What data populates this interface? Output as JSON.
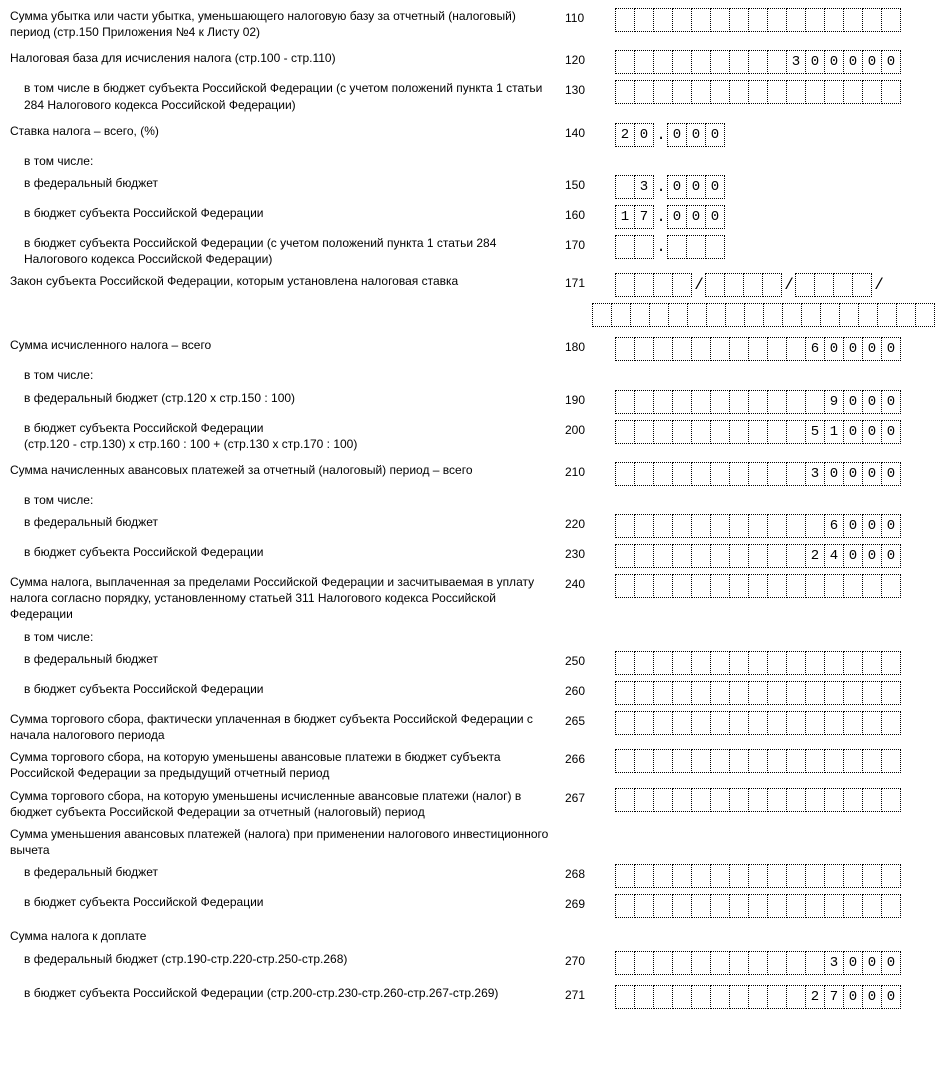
{
  "rows": [
    {
      "code": "110",
      "label": "Сумма убытка или части убытка, уменьшающего налоговую базу за отчетный (налоговый) период (стр.150 Приложения №4 к Листу 02)",
      "indent": 0,
      "cells": 15,
      "value": "",
      "align": "right"
    },
    {
      "code": "120",
      "label": "Налоговая база для исчисления налога (стр.100 - стр.110)",
      "indent": 0,
      "cells": 15,
      "value": "300000",
      "align": "right",
      "gap": true
    },
    {
      "code": "130",
      "label": "в том числе в бюджет субъекта Российской Федерации (с учетом положений пункта 1 статьи 284 Налогового кодекса Российской Федерации)",
      "indent": 1,
      "cells": 15,
      "value": "",
      "align": "right"
    },
    {
      "code": "140",
      "label": "Ставка налога – всего, (%)",
      "indent": 0,
      "type": "rate",
      "int": "20",
      "frac": "000",
      "gap": true
    },
    {
      "code": "",
      "label": "в том числе:",
      "indent": 1,
      "type": "text"
    },
    {
      "code": "150",
      "label": "в федеральный бюджет",
      "indent": 1,
      "type": "rate",
      "int": "3",
      "frac": "000"
    },
    {
      "code": "160",
      "label": "в бюджет субъекта Российской Федерации",
      "indent": 1,
      "type": "rate",
      "int": "17",
      "frac": "000"
    },
    {
      "code": "170",
      "label": "в бюджет субъекта Российской Федерации (с учетом положений пункта 1 статьи 284 Налогового кодекса Российской Федерации)",
      "indent": 1,
      "type": "rate",
      "int": "",
      "frac": ""
    },
    {
      "code": "171",
      "label": "Закон субъекта Российской Федерации, которым установлена налоговая ставка",
      "indent": 0,
      "type": "law"
    },
    {
      "code": "",
      "label": "",
      "indent": 0,
      "cells": 18,
      "value": "",
      "type": "law2"
    },
    {
      "code": "180",
      "label": "Сумма исчисленного налога – всего",
      "indent": 0,
      "cells": 15,
      "value": "60000",
      "align": "right",
      "gap": true
    },
    {
      "code": "",
      "label": "в том числе:",
      "indent": 1,
      "type": "text"
    },
    {
      "code": "190",
      "label": "в федеральный бюджет (стр.120 х стр.150 : 100)",
      "indent": 1,
      "cells": 15,
      "value": "9000",
      "align": "right"
    },
    {
      "code": "200",
      "label": "в бюджет субъекта Российской Федерации\n(стр.120 - стр.130) х стр.160 : 100 + (стр.130 х стр.170 : 100)",
      "indent": 1,
      "cells": 15,
      "value": "51000",
      "align": "right"
    },
    {
      "code": "210",
      "label": "Сумма начисленных авансовых платежей за отчетный (налоговый) период – всего",
      "indent": 0,
      "cells": 15,
      "value": "30000",
      "align": "right",
      "gap": true
    },
    {
      "code": "",
      "label": "в том числе:",
      "indent": 1,
      "type": "text"
    },
    {
      "code": "220",
      "label": "в федеральный бюджет",
      "indent": 1,
      "cells": 15,
      "value": "6000",
      "align": "right"
    },
    {
      "code": "230",
      "label": "в бюджет субъекта Российской Федерации",
      "indent": 1,
      "cells": 15,
      "value": "24000",
      "align": "right"
    },
    {
      "code": "240",
      "label": "Сумма налога, выплаченная за пределами Российской Федерации и засчитываемая в уплату налога согласно порядку, установленному статьей 311 Налогового кодекса Российской Федерации",
      "indent": 0,
      "cells": 15,
      "value": "",
      "align": "right"
    },
    {
      "code": "",
      "label": "в том числе:",
      "indent": 1,
      "type": "text"
    },
    {
      "code": "250",
      "label": "в федеральный бюджет",
      "indent": 1,
      "cells": 15,
      "value": "",
      "align": "right"
    },
    {
      "code": "260",
      "label": "в бюджет субъекта Российской Федерации",
      "indent": 1,
      "cells": 15,
      "value": "",
      "align": "right"
    },
    {
      "code": "265",
      "label": "Сумма торгового сбора, фактически уплаченная в бюджет субъекта Российской Федерации с начала налогового периода",
      "indent": 0,
      "cells": 15,
      "value": "",
      "align": "right"
    },
    {
      "code": "266",
      "label": "Сумма торгового сбора, на которую уменьшены авансовые платежи в бюджет субъекта Российской Федерации за предыдущий отчетный период",
      "indent": 0,
      "cells": 15,
      "value": "",
      "align": "right"
    },
    {
      "code": "267",
      "label": "Сумма торгового сбора, на которую уменьшены исчисленные авансовые платежи (налог) в бюджет субъекта Российской Федерации за отчетный (налоговый) период",
      "indent": 0,
      "cells": 15,
      "value": "",
      "align": "right"
    },
    {
      "code": "",
      "label": "Сумма уменьшения авансовых платежей (налога) при применении налогового инвестиционного вычета",
      "indent": 0,
      "type": "text"
    },
    {
      "code": "268",
      "label": "в федеральный бюджет",
      "indent": 1,
      "cells": 15,
      "value": "",
      "align": "right"
    },
    {
      "code": "269",
      "label": "в бюджет субъекта Российской Федерации",
      "indent": 1,
      "cells": 15,
      "value": "",
      "align": "right"
    },
    {
      "code": "",
      "label": "Сумма налога к доплате",
      "indent": 0,
      "type": "text",
      "gap": true
    },
    {
      "code": "270",
      "label": "в федеральный бюджет (стр.190-стр.220-стр.250-стр.268)",
      "indent": 1,
      "cells": 15,
      "value": "3000",
      "align": "right"
    },
    {
      "code": "271",
      "label": "в бюджет субъекта Российской Федерации (стр.200-стр.230-стр.260-стр.267-стр.269)",
      "indent": 1,
      "cells": 15,
      "value": "27000",
      "align": "right",
      "gap": true
    }
  ]
}
